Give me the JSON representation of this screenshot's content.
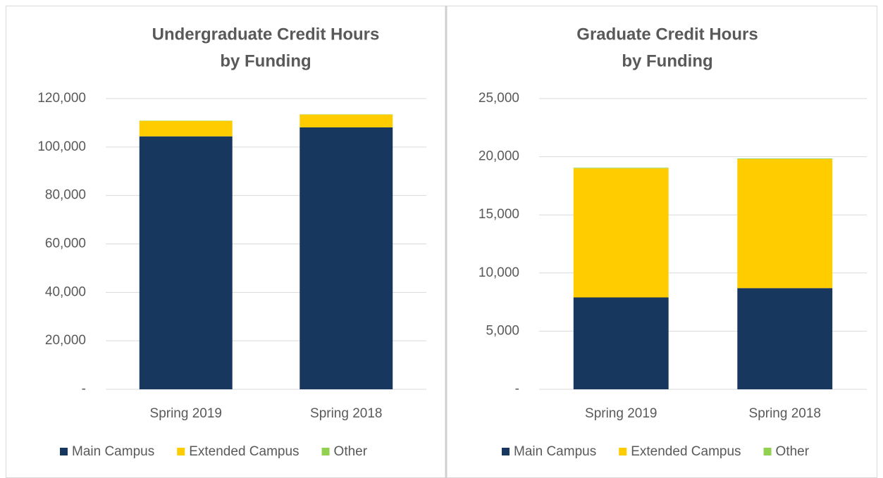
{
  "chart_data": [
    {
      "type": "stacked_bar",
      "title": [
        "Undergraduate Credit Hours",
        "by Funding"
      ],
      "categories": [
        "Spring 2019",
        "Spring 2018"
      ],
      "series": [
        {
          "name": "Main Campus",
          "color": "#17375e",
          "values": [
            104400,
            108100
          ]
        },
        {
          "name": "Extended Campus",
          "color": "#ffcc00",
          "values": [
            6400,
            5300
          ]
        },
        {
          "name": "Other",
          "color": "#92d050",
          "values": [
            100,
            100
          ]
        }
      ],
      "ylim": [
        0,
        120000
      ],
      "yticks": [
        {
          "value": 0,
          "label": "-"
        },
        {
          "value": 20000,
          "label": "20,000"
        },
        {
          "value": 40000,
          "label": "40,000"
        },
        {
          "value": 60000,
          "label": "60,000"
        },
        {
          "value": 80000,
          "label": "80,000"
        },
        {
          "value": 100000,
          "label": "100,000"
        },
        {
          "value": 120000,
          "label": "120,000"
        }
      ],
      "grid": true,
      "legend": "bottom"
    },
    {
      "type": "stacked_bar",
      "title": [
        "Graduate Credit Hours",
        "by Funding"
      ],
      "categories": [
        "Spring 2019",
        "Spring 2018"
      ],
      "series": [
        {
          "name": "Main Campus",
          "color": "#17375e",
          "values": [
            7900,
            8700
          ]
        },
        {
          "name": "Extended Campus",
          "color": "#ffcc00",
          "values": [
            11100,
            11100
          ]
        },
        {
          "name": "Other",
          "color": "#92d050",
          "values": [
            50,
            50
          ]
        }
      ],
      "ylim": [
        0,
        25000
      ],
      "yticks": [
        {
          "value": 0,
          "label": "-"
        },
        {
          "value": 5000,
          "label": "5,000"
        },
        {
          "value": 10000,
          "label": "10,000"
        },
        {
          "value": 15000,
          "label": "15,000"
        },
        {
          "value": 20000,
          "label": "20,000"
        },
        {
          "value": 25000,
          "label": "25,000"
        }
      ],
      "grid": true,
      "legend": "bottom"
    }
  ]
}
